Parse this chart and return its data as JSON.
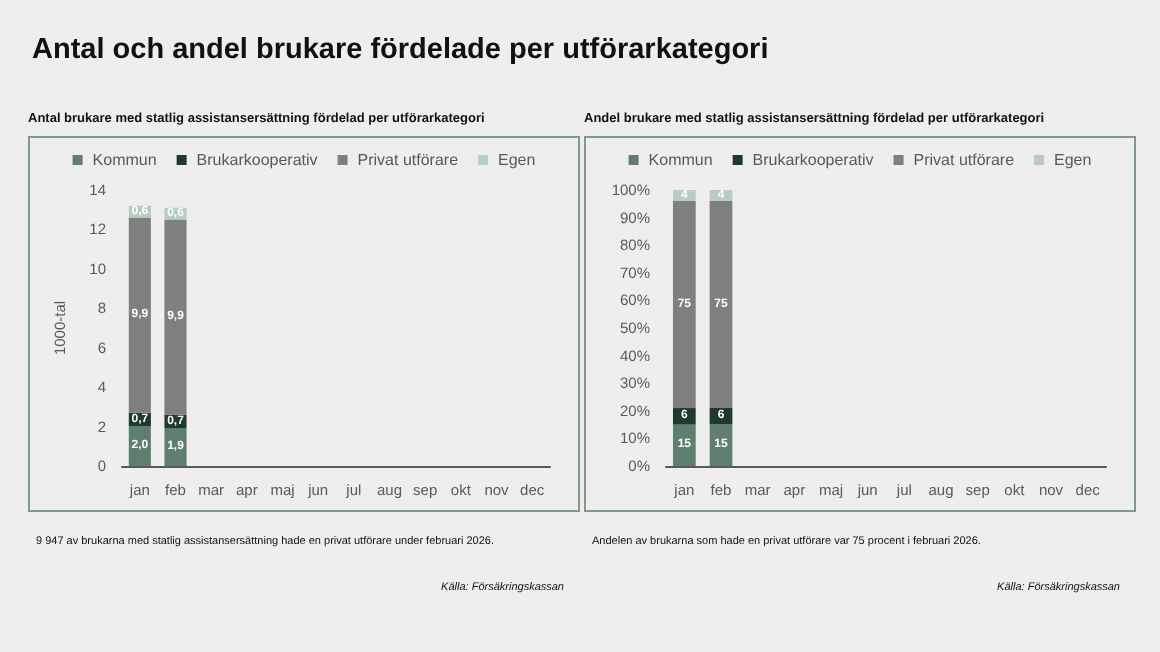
{
  "chart_data": [
    {
      "type": "bar",
      "title": "Antal och andel brukare fördelade per utförarkategori",
      "subtitle": "Antal brukare med statlig assistansersättning fördelad per utförarkategori",
      "ylabel": "1000-tal",
      "categories": [
        "jan",
        "feb",
        "mar",
        "apr",
        "maj",
        "jun",
        "jul",
        "aug",
        "sep",
        "okt",
        "nov",
        "dec"
      ],
      "stacked": true,
      "legend": "top",
      "grid": false,
      "ylim": [
        0,
        14
      ],
      "yticks": [
        0,
        2,
        4,
        6,
        8,
        10,
        12,
        14
      ],
      "series": [
        {
          "name": "Kommun",
          "color": "#5e7f6d",
          "values": [
            2.0,
            1.9,
            null,
            null,
            null,
            null,
            null,
            null,
            null,
            null,
            null,
            null
          ],
          "value_labels": [
            "2,0",
            "1,9",
            null,
            null,
            null,
            null,
            null,
            null,
            null,
            null,
            null,
            null
          ]
        },
        {
          "name": "Brukarkooperativ",
          "color": "#1f3a2d",
          "values": [
            0.7,
            0.7,
            null,
            null,
            null,
            null,
            null,
            null,
            null,
            null,
            null,
            null
          ],
          "value_labels": [
            "0,7",
            "0,7",
            null,
            null,
            null,
            null,
            null,
            null,
            null,
            null,
            null,
            null
          ]
        },
        {
          "name": "Privat utförare",
          "color": "#7f7f7f",
          "values": [
            9.9,
            9.9,
            null,
            null,
            null,
            null,
            null,
            null,
            null,
            null,
            null,
            null
          ],
          "value_labels": [
            "9,9",
            "9,9",
            null,
            null,
            null,
            null,
            null,
            null,
            null,
            null,
            null,
            null
          ]
        },
        {
          "name": "Egen",
          "color": "#b7cdc0",
          "values": [
            0.6,
            0.6,
            null,
            null,
            null,
            null,
            null,
            null,
            null,
            null,
            null,
            null
          ],
          "value_labels": [
            "0,6",
            "0,6",
            null,
            null,
            null,
            null,
            null,
            null,
            null,
            null,
            null,
            null
          ]
        }
      ],
      "annotations": [
        "9 947 av brukarna med statlig assistansersättning hade en privat utförare under februari 2026.",
        "Källa: Försäkringskassan"
      ]
    },
    {
      "type": "bar",
      "subtitle": "Andel brukare med statlig assistansersättning fördelad per utförarkategori",
      "categories": [
        "jan",
        "feb",
        "mar",
        "apr",
        "maj",
        "jun",
        "jul",
        "aug",
        "sep",
        "okt",
        "nov",
        "dec"
      ],
      "stacked": true,
      "legend": "top",
      "grid": false,
      "data_labels": true,
      "ylim": [
        0,
        100
      ],
      "yticks": [
        {
          "value": 0,
          "label": "0%"
        },
        {
          "value": 10,
          "label": "10%"
        },
        {
          "value": 20,
          "label": "20%"
        },
        {
          "value": 30,
          "label": "30%"
        },
        {
          "value": 40,
          "label": "40%"
        },
        {
          "value": 50,
          "label": "50%"
        },
        {
          "value": 60,
          "label": "60%"
        },
        {
          "value": 70,
          "label": "70%"
        },
        {
          "value": 80,
          "label": "80%"
        },
        {
          "value": 90,
          "label": "90%"
        },
        {
          "value": 100,
          "label": "100%"
        }
      ],
      "series": [
        {
          "name": "Kommun",
          "color": "#5e7f6d",
          "values": [
            15,
            15,
            null,
            null,
            null,
            null,
            null,
            null,
            null,
            null,
            null,
            null
          ]
        },
        {
          "name": "Brukarkooperativ",
          "color": "#1f3a2d",
          "values": [
            6,
            6,
            null,
            null,
            null,
            null,
            null,
            null,
            null,
            null,
            null,
            null
          ]
        },
        {
          "name": "Privat utförare",
          "color": "#7f7f7f",
          "values": [
            75,
            75,
            null,
            null,
            null,
            null,
            null,
            null,
            null,
            null,
            null,
            null
          ]
        },
        {
          "name": "Egen",
          "color": "#b7cdc0",
          "values": [
            4,
            4,
            null,
            null,
            null,
            null,
            null,
            null,
            null,
            null,
            null,
            null
          ]
        }
      ],
      "annotations": [
        "Andelen av brukarna som hade en privat utförare var 75 procent i februari 2026.",
        "Källa: Försäkringskassan"
      ]
    }
  ]
}
